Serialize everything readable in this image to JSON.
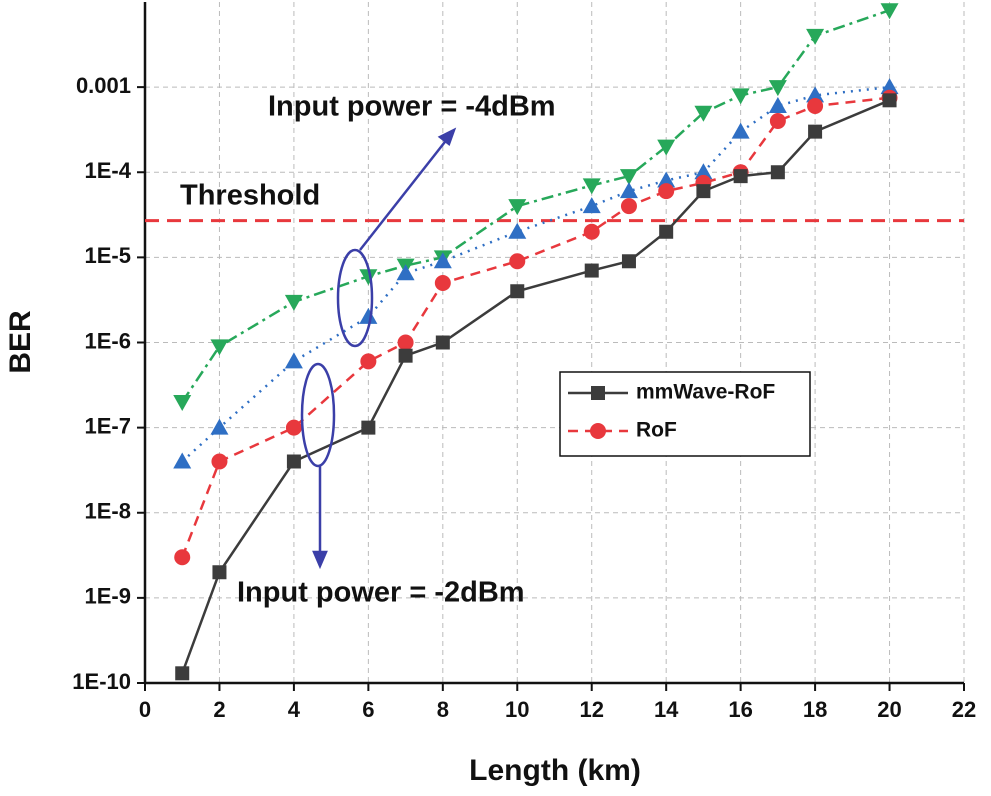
{
  "chart_data": {
    "type": "line",
    "x_label": "Length (km)",
    "y_label": "BER",
    "y_scale": "log",
    "grid": true,
    "x": [
      1,
      2,
      4,
      6,
      7,
      8,
      10,
      12,
      13,
      14,
      15,
      16,
      17,
      18,
      20
    ],
    "series": [
      {
        "name": "mmWave-RoF",
        "color": "#3c3c3c",
        "marker": "square",
        "line": "solid",
        "values": [
          1.3e-10,
          2e-09,
          4e-08,
          1e-07,
          7e-07,
          1e-06,
          4e-06,
          7e-06,
          9e-06,
          2e-05,
          6e-05,
          9e-05,
          0.0001,
          0.0003,
          0.0007
        ]
      },
      {
        "name": "RoF",
        "color": "#e8383d",
        "marker": "circle",
        "line": "dashed",
        "values": [
          3e-09,
          4e-08,
          1e-07,
          6e-07,
          1e-06,
          5e-06,
          9e-06,
          2e-05,
          4e-05,
          6e-05,
          7.5e-05,
          0.0001,
          0.0004,
          0.0006,
          0.00075
        ]
      },
      {
        "color": "#2f6fc4",
        "marker": "triangle",
        "line": "dotted",
        "values": [
          4e-08,
          1e-07,
          6e-07,
          2e-06,
          6.5e-06,
          9e-06,
          2e-05,
          4e-05,
          6e-05,
          8e-05,
          0.0001,
          0.0003,
          0.0006,
          0.0008,
          0.001
        ]
      },
      {
        "color": "#27a85a",
        "marker": "triangle-down",
        "line": "dashdot",
        "values": [
          2e-07,
          9e-07,
          3e-06,
          6e-06,
          8e-06,
          1e-05,
          4e-05,
          7e-05,
          9e-05,
          0.0002,
          0.0005,
          0.0008,
          0.001,
          0.004,
          0.008
        ]
      }
    ],
    "threshold": {
      "value": 2.7e-05,
      "label": "Threshold",
      "color": "#e8383d"
    },
    "annotations": [
      "Input power = -4dBm",
      "Input power = -2dBm"
    ],
    "xlim": [
      0,
      22
    ],
    "xticks": [
      0,
      2,
      4,
      6,
      8,
      10,
      12,
      14,
      16,
      18,
      20,
      22
    ],
    "ylim": [
      1e-10,
      0.01
    ],
    "yticks": [
      {
        "value": 1e-10,
        "label": "1E-10"
      },
      {
        "value": 1e-09,
        "label": "1E-9"
      },
      {
        "value": 1e-08,
        "label": "1E-8"
      },
      {
        "value": 1e-07,
        "label": "1E-7"
      },
      {
        "value": 1e-06,
        "label": "1E-6"
      },
      {
        "value": 1e-05,
        "label": "1E-5"
      },
      {
        "value": 0.0001,
        "label": "1E-4"
      },
      0.001
    ]
  }
}
